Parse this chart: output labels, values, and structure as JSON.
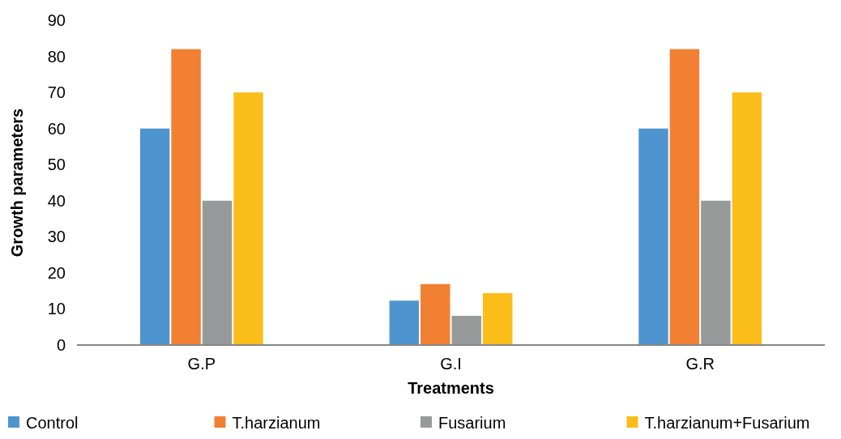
{
  "chart_data": {
    "type": "bar",
    "xlabel": "Treatments",
    "ylabel": "Growth parameters",
    "categories": [
      "G.P",
      "G.I",
      "G.R"
    ],
    "series": [
      {
        "name": "Control",
        "color": "#4e95d0",
        "values": [
          60,
          12.3,
          60
        ]
      },
      {
        "name": "T.harzianum",
        "color": "#f28033",
        "values": [
          82,
          16.9,
          82
        ]
      },
      {
        "name": "Fusarium",
        "color": "#969a9b",
        "values": [
          40,
          8.1,
          40
        ]
      },
      {
        "name": "T.harzianum+Fusarium",
        "color": "#fbbd1a",
        "values": [
          70,
          14.4,
          70
        ]
      }
    ],
    "ylim": [
      0,
      90
    ],
    "yticks": [
      0,
      10,
      20,
      30,
      40,
      50,
      60,
      70,
      80,
      90
    ],
    "grid": false,
    "legend": "bottom"
  }
}
